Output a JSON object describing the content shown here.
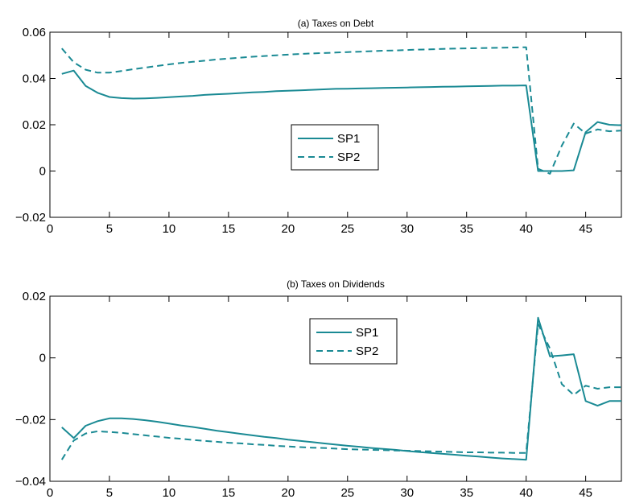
{
  "chart_data": [
    {
      "type": "line",
      "title": "(a) Taxes on Debt",
      "xlabel": "",
      "ylabel": "",
      "xlim": [
        0,
        48
      ],
      "ylim": [
        -0.02,
        0.06
      ],
      "xticks": [
        0,
        5,
        10,
        15,
        20,
        25,
        30,
        35,
        40,
        45
      ],
      "yticks": [
        -0.02,
        0,
        0.02,
        0.04,
        0.06
      ],
      "xtick_labels": [
        "0",
        "5",
        "10",
        "15",
        "20",
        "25",
        "30",
        "35",
        "40",
        "45"
      ],
      "ytick_labels": [
        "−0.02",
        "0",
        "0.02",
        "0.04",
        "0.06"
      ],
      "grid": false,
      "legend_position": "center",
      "x": [
        1,
        2,
        3,
        4,
        5,
        6,
        7,
        8,
        9,
        10,
        11,
        12,
        13,
        14,
        15,
        16,
        17,
        18,
        19,
        20,
        21,
        22,
        23,
        24,
        25,
        26,
        27,
        28,
        29,
        30,
        31,
        32,
        33,
        34,
        35,
        36,
        37,
        38,
        39,
        40,
        41,
        42,
        43,
        44,
        45,
        46,
        47,
        48
      ],
      "series": [
        {
          "name": "SP1",
          "color": "#1a8a94",
          "dash": "solid",
          "values": [
            0.042,
            0.0434,
            0.0368,
            0.0338,
            0.032,
            0.0315,
            0.0313,
            0.0314,
            0.0316,
            0.0319,
            0.0322,
            0.0325,
            0.0329,
            0.0332,
            0.0334,
            0.0337,
            0.034,
            0.0342,
            0.0345,
            0.0347,
            0.0349,
            0.0351,
            0.0353,
            0.0355,
            0.0356,
            0.0357,
            0.0358,
            0.0359,
            0.036,
            0.0361,
            0.0362,
            0.0363,
            0.0364,
            0.0365,
            0.0366,
            0.0367,
            0.0368,
            0.0369,
            0.0369,
            0.037,
            0.0,
            0.0,
            0.0,
            0.0003,
            0.0168,
            0.0212,
            0.02,
            0.0198
          ]
        },
        {
          "name": "SP2",
          "color": "#1a8a94",
          "dash": "dashed",
          "values": [
            0.053,
            0.047,
            0.0438,
            0.0425,
            0.0425,
            0.0432,
            0.044,
            0.0447,
            0.0454,
            0.0461,
            0.0467,
            0.0472,
            0.0477,
            0.0482,
            0.0486,
            0.049,
            0.0494,
            0.0497,
            0.05,
            0.0503,
            0.0506,
            0.0508,
            0.051,
            0.0512,
            0.0514,
            0.0516,
            0.0518,
            0.052,
            0.0521,
            0.0523,
            0.0525,
            0.0526,
            0.0528,
            0.0529,
            0.053,
            0.0531,
            0.0532,
            0.0533,
            0.0534,
            0.0535,
            0.001,
            -0.0012,
            0.011,
            0.0205,
            0.0162,
            0.018,
            0.0172,
            0.0175
          ]
        }
      ]
    },
    {
      "type": "line",
      "title": "(b) Taxes on Dividends",
      "xlabel": "",
      "ylabel": "",
      "xlim": [
        0,
        48
      ],
      "ylim": [
        -0.04,
        0.02
      ],
      "xticks": [
        0,
        5,
        10,
        15,
        20,
        25,
        30,
        35,
        40,
        45
      ],
      "yticks": [
        -0.04,
        -0.02,
        0,
        0.02
      ],
      "xtick_labels": [
        "0",
        "5",
        "10",
        "15",
        "20",
        "25",
        "30",
        "35",
        "40",
        "45"
      ],
      "ytick_labels": [
        "−0.04",
        "−0.02",
        "0",
        "0.02"
      ],
      "grid": false,
      "legend_position": "top-center",
      "x": [
        1,
        2,
        3,
        4,
        5,
        6,
        7,
        8,
        9,
        10,
        11,
        12,
        13,
        14,
        15,
        16,
        17,
        18,
        19,
        20,
        21,
        22,
        23,
        24,
        25,
        26,
        27,
        28,
        29,
        30,
        31,
        32,
        33,
        34,
        35,
        36,
        37,
        38,
        39,
        40,
        41,
        42,
        43,
        44,
        45,
        46,
        47,
        48
      ],
      "series": [
        {
          "name": "SP1",
          "color": "#1a8a94",
          "dash": "solid",
          "values": [
            -0.0225,
            -0.026,
            -0.022,
            -0.0205,
            -0.0196,
            -0.0196,
            -0.0198,
            -0.0202,
            -0.0207,
            -0.0213,
            -0.0219,
            -0.0224,
            -0.023,
            -0.0236,
            -0.0241,
            -0.0246,
            -0.0251,
            -0.0256,
            -0.026,
            -0.0265,
            -0.0269,
            -0.0273,
            -0.0277,
            -0.0281,
            -0.0285,
            -0.0288,
            -0.0292,
            -0.0295,
            -0.0298,
            -0.0302,
            -0.0305,
            -0.0308,
            -0.0311,
            -0.0314,
            -0.0317,
            -0.032,
            -0.0323,
            -0.0326,
            -0.0328,
            -0.033,
            0.013,
            0.0005,
            0.0008,
            0.0012,
            -0.014,
            -0.0155,
            -0.014,
            -0.014
          ]
        },
        {
          "name": "SP2",
          "color": "#1a8a94",
          "dash": "dashed",
          "values": [
            -0.033,
            -0.0268,
            -0.0245,
            -0.0238,
            -0.024,
            -0.0243,
            -0.0247,
            -0.0251,
            -0.0255,
            -0.0259,
            -0.0262,
            -0.0266,
            -0.0269,
            -0.0272,
            -0.0275,
            -0.0277,
            -0.028,
            -0.0282,
            -0.0285,
            -0.0287,
            -0.0289,
            -0.0291,
            -0.0292,
            -0.0294,
            -0.0296,
            -0.0297,
            -0.0298,
            -0.0299,
            -0.03,
            -0.0301,
            -0.0302,
            -0.0303,
            -0.0304,
            -0.0305,
            -0.0306,
            -0.0306,
            -0.0307,
            -0.0307,
            -0.0308,
            -0.0308,
            0.011,
            0.003,
            -0.0085,
            -0.012,
            -0.009,
            -0.01,
            -0.0095,
            -0.0095
          ]
        }
      ]
    }
  ]
}
